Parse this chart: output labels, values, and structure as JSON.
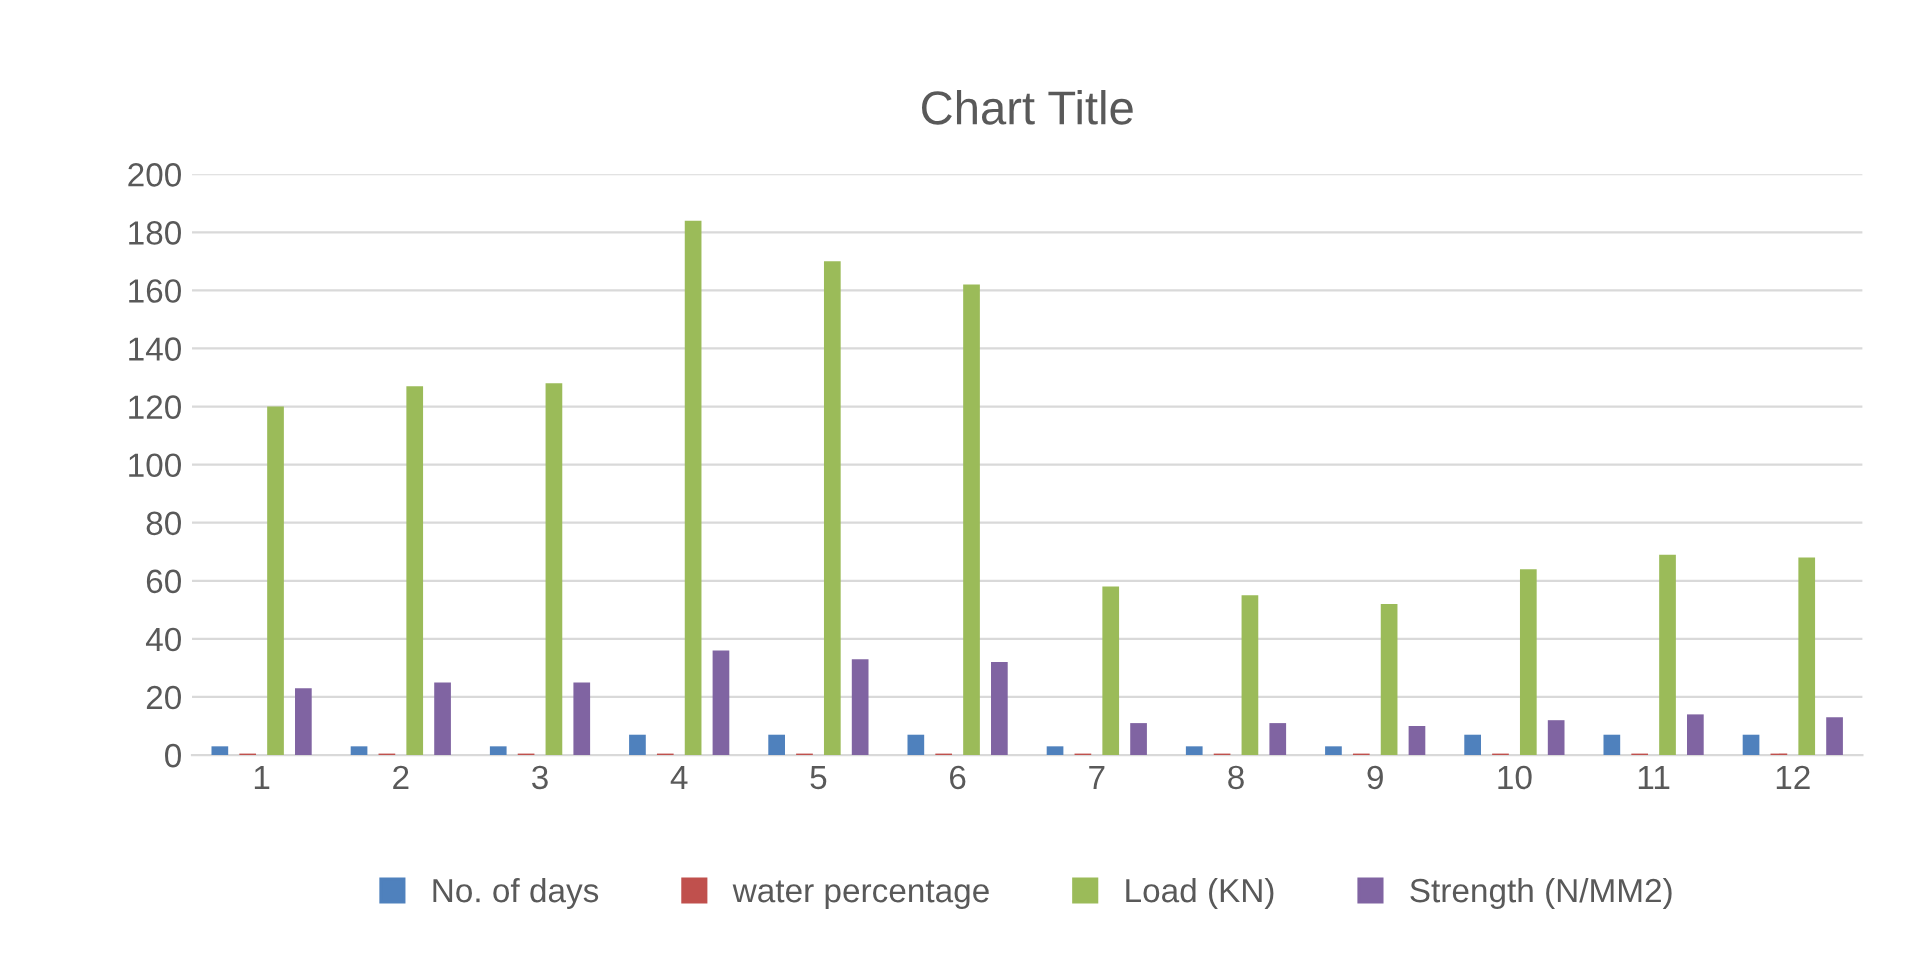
{
  "chart_data": {
    "type": "bar",
    "title": "Chart Title",
    "categories": [
      "1",
      "2",
      "3",
      "4",
      "5",
      "6",
      "7",
      "8",
      "9",
      "10",
      "11",
      "12"
    ],
    "series": [
      {
        "name": "No. of days",
        "color": "#4f81bd",
        "values": [
          3,
          3,
          3,
          7,
          7,
          7,
          3,
          3,
          3,
          7,
          7,
          7
        ]
      },
      {
        "name": "water percentage",
        "color": "#c0504d",
        "values": [
          0.5,
          0.5,
          0.5,
          0.5,
          0.5,
          0.5,
          0.5,
          0.5,
          0.5,
          0.5,
          0.5,
          0.5
        ]
      },
      {
        "name": "Load (KN)",
        "color": "#9bbb59",
        "values": [
          120,
          127,
          128,
          184,
          170,
          162,
          58,
          55,
          52,
          64,
          69,
          68
        ]
      },
      {
        "name": "Strength (N/MM2)",
        "color": "#8064a2",
        "values": [
          23,
          25,
          25,
          36,
          33,
          32,
          11,
          11,
          10,
          12,
          14,
          13
        ]
      }
    ],
    "ylim": [
      0,
      200
    ],
    "yticks": [
      0,
      20,
      40,
      60,
      80,
      100,
      120,
      140,
      160,
      180,
      200
    ],
    "grid": "y",
    "legend": "bottom"
  }
}
